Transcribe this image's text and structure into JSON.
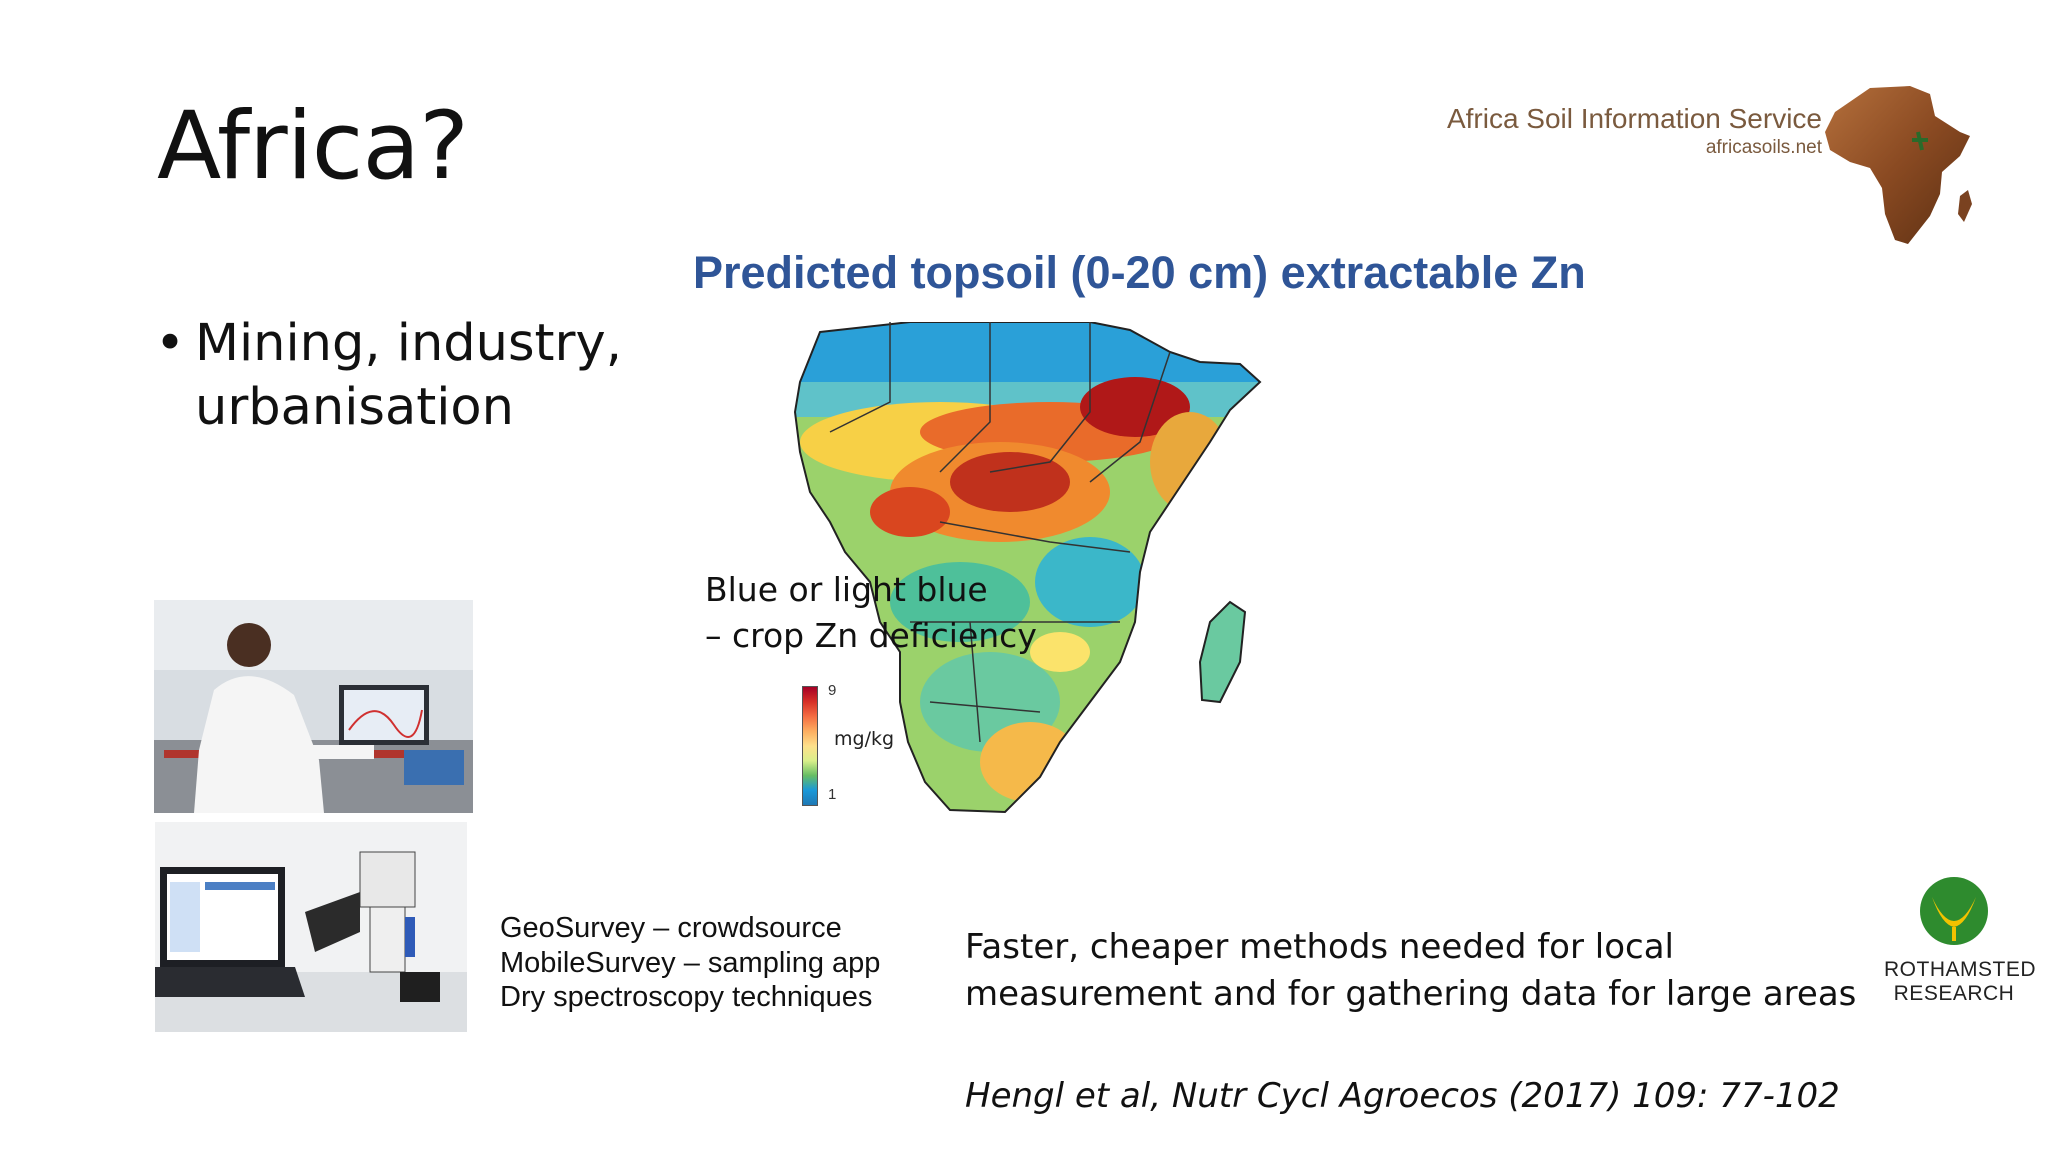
{
  "slide": {
    "title": "Africa?",
    "bullet_symbol": "•",
    "bullet_text": "Mining, industry, urbanisation"
  },
  "asis_logo": {
    "name": "Africa Soil Information Service",
    "url": "africasoils.net",
    "icon": "africa-continent-icon"
  },
  "map": {
    "title": "Predicted topsoil (0-20 cm) extractable Zn",
    "note_line1": "Blue or light blue",
    "note_line2": "– crop Zn deficiency",
    "legend": {
      "max": "9",
      "min": "1",
      "unit": "mg/kg"
    },
    "colors": {
      "high": "#a50026",
      "mid": "#fee08b",
      "low": "#1f78b4"
    }
  },
  "methods": [
    "GeoSurvey – crowdsource",
    "MobileSurvey – sampling app",
    "Dry spectroscopy techniques"
  ],
  "conclusion": {
    "line1": "Faster, cheaper methods needed for local",
    "line2": "measurement and for gathering data for large areas"
  },
  "citation": "Hengl et al, Nutr Cycl Agroecos (2017) 109: 77-102",
  "rothamsted": {
    "line1": "ROTHAMSTED",
    "line2": "RESEARCH",
    "icon": "rothamsted-leaf-icon"
  }
}
